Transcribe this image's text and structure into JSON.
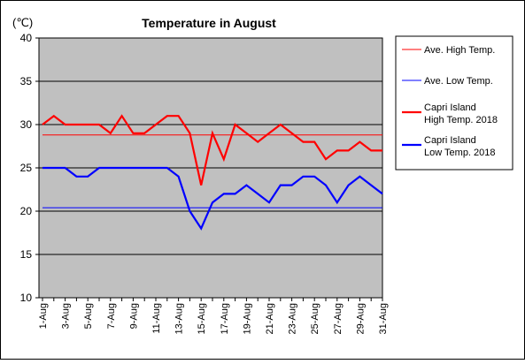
{
  "chart_data": {
    "type": "line",
    "title": "Temperature in August",
    "unit_label": "(℃)",
    "xlabel": "",
    "ylabel": "",
    "ylim": [
      10,
      40
    ],
    "yticks": [
      10,
      15,
      20,
      25,
      30,
      35,
      40
    ],
    "grid": true,
    "legend_position": "right",
    "x": [
      "1-Aug",
      "2-Aug",
      "3-Aug",
      "4-Aug",
      "5-Aug",
      "6-Aug",
      "7-Aug",
      "8-Aug",
      "9-Aug",
      "10-Aug",
      "11-Aug",
      "12-Aug",
      "13-Aug",
      "14-Aug",
      "15-Aug",
      "16-Aug",
      "17-Aug",
      "18-Aug",
      "19-Aug",
      "20-Aug",
      "21-Aug",
      "22-Aug",
      "23-Aug",
      "24-Aug",
      "25-Aug",
      "26-Aug",
      "27-Aug",
      "28-Aug",
      "29-Aug",
      "30-Aug",
      "31-Aug"
    ],
    "xticks_shown": [
      "1-Aug",
      "3-Aug",
      "5-Aug",
      "7-Aug",
      "9-Aug",
      "11-Aug",
      "13-Aug",
      "15-Aug",
      "17-Aug",
      "19-Aug",
      "21-Aug",
      "23-Aug",
      "25-Aug",
      "27-Aug",
      "29-Aug",
      "31-Aug"
    ],
    "series": [
      {
        "name": "Ave. High Temp.",
        "color": "#ff0000",
        "style": "thin",
        "values": [
          28.8,
          28.8,
          28.8,
          28.8,
          28.8,
          28.8,
          28.8,
          28.8,
          28.8,
          28.8,
          28.8,
          28.8,
          28.8,
          28.8,
          28.8,
          28.8,
          28.8,
          28.8,
          28.8,
          28.8,
          28.8,
          28.8,
          28.8,
          28.8,
          28.8,
          28.8,
          28.8,
          28.8,
          28.8,
          28.8,
          28.8
        ]
      },
      {
        "name": "Ave. Low Temp.",
        "color": "#0000ff",
        "style": "thin",
        "values": [
          20.4,
          20.4,
          20.4,
          20.4,
          20.4,
          20.4,
          20.4,
          20.4,
          20.4,
          20.4,
          20.4,
          20.4,
          20.4,
          20.4,
          20.4,
          20.4,
          20.4,
          20.4,
          20.4,
          20.4,
          20.4,
          20.4,
          20.4,
          20.4,
          20.4,
          20.4,
          20.4,
          20.4,
          20.4,
          20.4,
          20.4
        ]
      },
      {
        "name": "Capri Island\nHigh Temp. 2018",
        "color": "#ff0000",
        "style": "thick",
        "values": [
          30,
          31,
          30,
          30,
          30,
          30,
          29,
          31,
          29,
          29,
          30,
          31,
          31,
          29,
          23,
          29,
          26,
          30,
          29,
          28,
          29,
          30,
          29,
          28,
          28,
          26,
          27,
          27,
          28,
          27,
          27
        ]
      },
      {
        "name": "Capri Island\nLow Temp. 2018",
        "color": "#0000ff",
        "style": "thick",
        "values": [
          25,
          25,
          25,
          24,
          24,
          25,
          25,
          25,
          25,
          25,
          25,
          25,
          24,
          20,
          18,
          21,
          22,
          22,
          23,
          22,
          21,
          23,
          23,
          24,
          24,
          23,
          21,
          23,
          24,
          23,
          22
        ]
      }
    ]
  }
}
